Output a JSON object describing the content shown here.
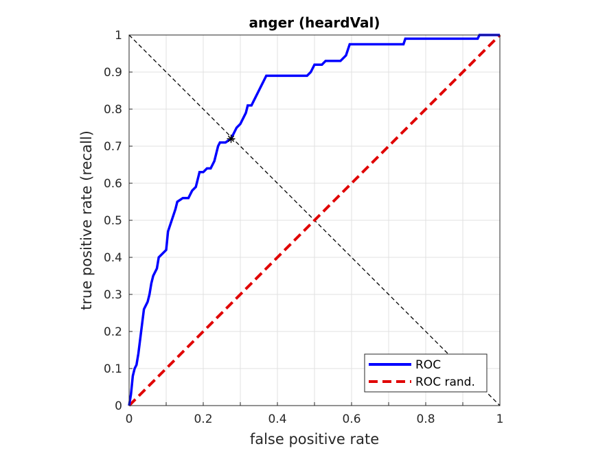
{
  "chart_data": {
    "type": "line",
    "title": "anger (heardVal)",
    "xlabel": "false positive rate",
    "ylabel": "true positive rate (recall)",
    "xlim": [
      0,
      1
    ],
    "ylim": [
      0,
      1
    ],
    "x_ticks": [
      "0",
      "0.2",
      "0.4",
      "0.6",
      "0.8",
      "1"
    ],
    "y_ticks": [
      "0",
      "0.1",
      "0.2",
      "0.3",
      "0.4",
      "0.5",
      "0.6",
      "0.7",
      "0.8",
      "0.9",
      "1"
    ],
    "grid": true,
    "legend_position": "bottom-right",
    "series": [
      {
        "name": "ROC",
        "color": "#0000ff",
        "style": "solid",
        "points": [
          [
            0,
            0
          ],
          [
            0.005,
            0.03
          ],
          [
            0.01,
            0.08
          ],
          [
            0.015,
            0.1
          ],
          [
            0.02,
            0.11
          ],
          [
            0.025,
            0.14
          ],
          [
            0.03,
            0.18
          ],
          [
            0.035,
            0.22
          ],
          [
            0.04,
            0.26
          ],
          [
            0.045,
            0.27
          ],
          [
            0.05,
            0.28
          ],
          [
            0.055,
            0.3
          ],
          [
            0.06,
            0.33
          ],
          [
            0.065,
            0.35
          ],
          [
            0.075,
            0.37
          ],
          [
            0.08,
            0.4
          ],
          [
            0.09,
            0.41
          ],
          [
            0.1,
            0.42
          ],
          [
            0.105,
            0.47
          ],
          [
            0.115,
            0.5
          ],
          [
            0.125,
            0.53
          ],
          [
            0.13,
            0.55
          ],
          [
            0.145,
            0.56
          ],
          [
            0.16,
            0.56
          ],
          [
            0.17,
            0.58
          ],
          [
            0.18,
            0.59
          ],
          [
            0.19,
            0.63
          ],
          [
            0.2,
            0.63
          ],
          [
            0.21,
            0.64
          ],
          [
            0.22,
            0.64
          ],
          [
            0.23,
            0.66
          ],
          [
            0.24,
            0.7
          ],
          [
            0.245,
            0.71
          ],
          [
            0.26,
            0.71
          ],
          [
            0.275,
            0.72
          ],
          [
            0.285,
            0.74
          ],
          [
            0.29,
            0.75
          ],
          [
            0.3,
            0.76
          ],
          [
            0.31,
            0.78
          ],
          [
            0.315,
            0.79
          ],
          [
            0.32,
            0.81
          ],
          [
            0.33,
            0.81
          ],
          [
            0.335,
            0.82
          ],
          [
            0.34,
            0.83
          ],
          [
            0.35,
            0.85
          ],
          [
            0.36,
            0.87
          ],
          [
            0.37,
            0.89
          ],
          [
            0.39,
            0.89
          ],
          [
            0.41,
            0.89
          ],
          [
            0.43,
            0.89
          ],
          [
            0.45,
            0.89
          ],
          [
            0.48,
            0.89
          ],
          [
            0.49,
            0.9
          ],
          [
            0.5,
            0.92
          ],
          [
            0.52,
            0.92
          ],
          [
            0.53,
            0.93
          ],
          [
            0.57,
            0.93
          ],
          [
            0.585,
            0.945
          ],
          [
            0.595,
            0.975
          ],
          [
            0.74,
            0.975
          ],
          [
            0.745,
            0.99
          ],
          [
            0.8,
            0.99
          ],
          [
            0.9,
            0.99
          ],
          [
            0.94,
            0.99
          ],
          [
            0.945,
            1
          ],
          [
            1,
            1
          ]
        ]
      },
      {
        "name": "ROC rand.",
        "color": "#e00000",
        "style": "dashed",
        "points": [
          [
            0,
            0
          ],
          [
            1,
            1
          ]
        ]
      }
    ],
    "annotations": {
      "diagonal": {
        "color": "#000000",
        "style": "dashed",
        "points": [
          [
            0,
            1
          ],
          [
            1,
            0
          ]
        ]
      },
      "marker": {
        "symbol": "asterisk",
        "x": 0.275,
        "y": 0.72,
        "color": "#000000"
      }
    }
  }
}
